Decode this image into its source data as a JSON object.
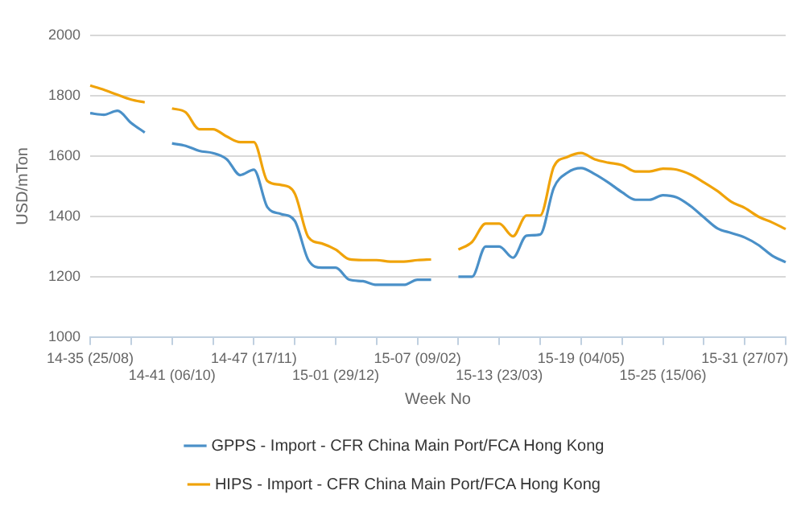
{
  "chart_data": {
    "type": "line",
    "xlabel": "Week No",
    "ylabel": "USD/mTon",
    "categories": [
      "14-35 (25/08)",
      null,
      null,
      null,
      null,
      null,
      "14-41 (06/10)",
      null,
      null,
      null,
      null,
      null,
      "14-47 (17/11)",
      null,
      null,
      null,
      null,
      null,
      "15-01 (29/12)",
      null,
      null,
      null,
      null,
      null,
      "15-07 (09/02)",
      null,
      null,
      null,
      null,
      null,
      "15-13 (23/03)",
      null,
      null,
      null,
      null,
      null,
      "15-19 (04/05)",
      null,
      null,
      null,
      null,
      null,
      "15-25 (15/06)",
      null,
      null,
      null,
      null,
      null,
      "15-31 (27/07)",
      null,
      null,
      null
    ],
    "series": [
      {
        "name": "GPPS - Import - CFR China Main Port/FCA Hong Kong",
        "color": "#4a90c8",
        "values": [
          1742,
          1737,
          1750,
          1710,
          1678,
          null,
          1642,
          1634,
          1617,
          1610,
          1590,
          1537,
          1555,
          1430,
          1408,
          1385,
          1255,
          1230,
          1230,
          1190,
          1185,
          1173,
          1173,
          1173,
          1190,
          1190,
          null,
          1200,
          1200,
          1300,
          1300,
          1263,
          1336,
          1340,
          1495,
          1545,
          1560,
          1540,
          1512,
          1480,
          1455,
          1455,
          1470,
          1463,
          1435,
          1397,
          1360,
          1345,
          1330,
          1305,
          1270,
          1248
        ]
      },
      {
        "name": "HIPS - Import - CFR China Main Port/FCA Hong Kong",
        "color": "#f0a30a",
        "values": [
          1834,
          1820,
          1803,
          1787,
          1778,
          null,
          1758,
          1745,
          1689,
          1689,
          1665,
          1646,
          1646,
          1517,
          1504,
          1476,
          1331,
          1310,
          1290,
          1258,
          1255,
          1255,
          1250,
          1250,
          1255,
          1257,
          null,
          1290,
          1315,
          1376,
          1376,
          1334,
          1403,
          1403,
          1565,
          1597,
          1610,
          1589,
          1578,
          1570,
          1549,
          1549,
          1558,
          1555,
          1539,
          1513,
          1484,
          1449,
          1428,
          1399,
          1380,
          1358
        ]
      }
    ],
    "ylim": [
      1000,
      2000
    ],
    "yticks": [
      1000,
      1200,
      1400,
      1600,
      1800,
      2000
    ],
    "grid": "y",
    "legend": "bottom",
    "marker": "none",
    "line_style": "solid"
  }
}
